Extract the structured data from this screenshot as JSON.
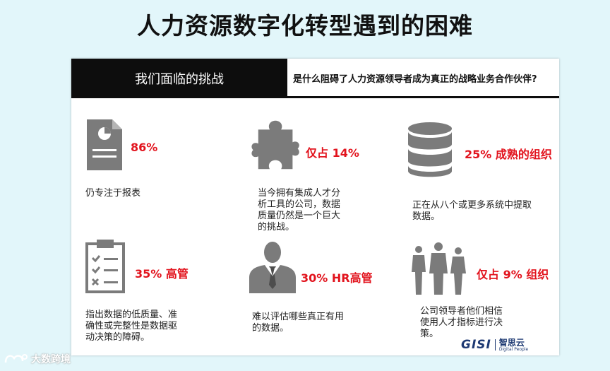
{
  "title": "人力资源数字化转型遇到的困难",
  "header": {
    "left_label": "我们面临的挑战",
    "right_question": "是什么阻碍了人力资源领导者成为真正的战略业务合作伙伴?"
  },
  "items": [
    {
      "icon": "report-icon",
      "stat": "86%",
      "desc": [
        "仍专注于报表"
      ]
    },
    {
      "icon": "puzzle-icon",
      "stat": "仅占 14%",
      "desc": [
        "当今拥有集成人才分",
        "析工具的公司，数据",
        "质量仍然是一个巨大",
        "的挑战。"
      ]
    },
    {
      "icon": "database-icon",
      "stat": "25%  成熟的组织",
      "desc": [
        "正在从八个或更多系统中提取",
        "数据。"
      ]
    },
    {
      "icon": "checklist-icon",
      "stat": "35%  高管",
      "desc": [
        "指出数据的低质量、准",
        "确性或完整性是数据驱",
        "动决策的障碍。"
      ]
    },
    {
      "icon": "executive-icon",
      "stat": "30%  HR高管",
      "desc": [
        "难以评估哪些真正有用",
        "的数据。"
      ]
    },
    {
      "icon": "people-group-icon",
      "stat": "仅占 9%  组织",
      "desc": [
        "公司领导者他们相信",
        "使用人才指标进行决",
        "策。"
      ]
    }
  ],
  "logo": {
    "mark": "GISI",
    "cn": "智思云",
    "en": "Digital People"
  },
  "watermark": "大数跨境",
  "colors": {
    "accent_red": "#e2131d",
    "icon_gray": "#7b7b7b",
    "background": "#e2f6fa",
    "header_black": "#0d0d0d"
  }
}
